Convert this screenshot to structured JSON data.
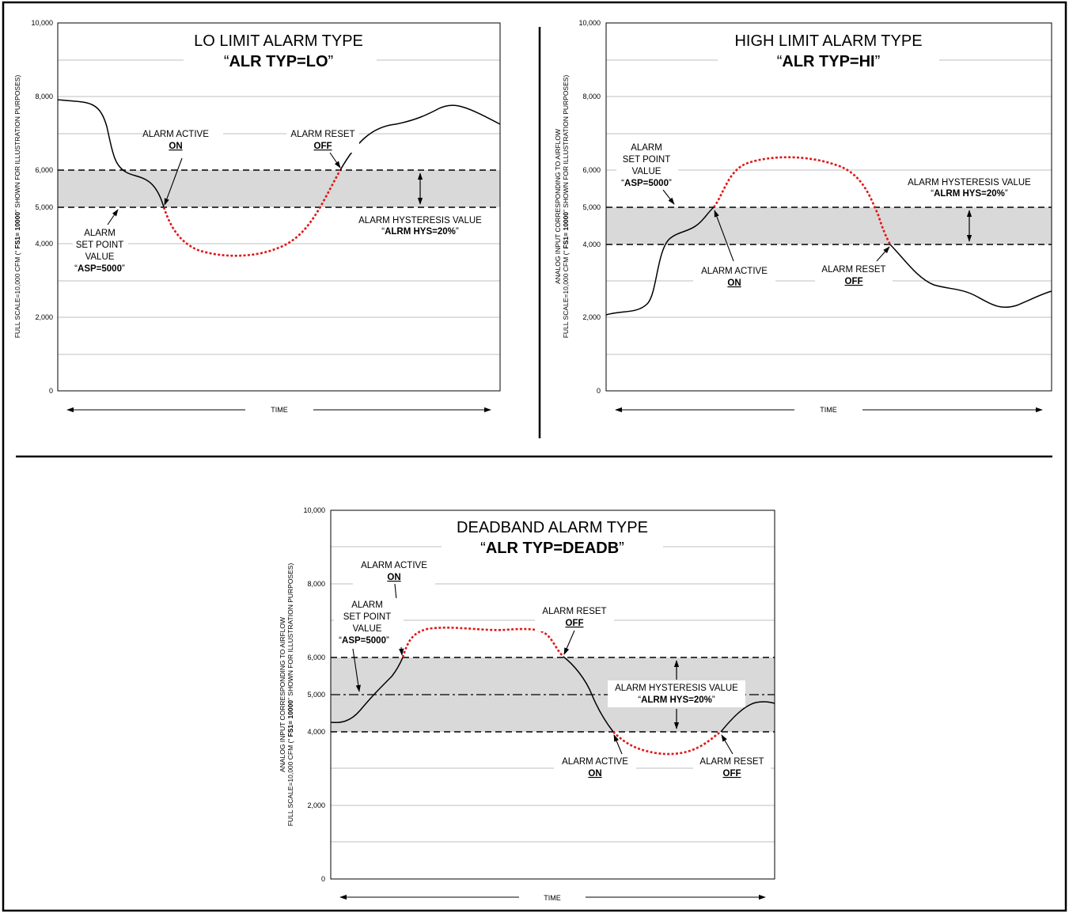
{
  "colors": {
    "band": "#d9d9d9",
    "curve": "#000000",
    "alarm": "#e01818",
    "grid": "#aaaaaa",
    "frame": "#000000"
  },
  "ticks": [
    "0",
    "2,000",
    "4,000",
    "5,000",
    "6,000",
    "8,000",
    "10,000"
  ],
  "time_label": "TIME",
  "yaxis_line1": "ANALOG INPUT CORRESPONDING TO AIRFLOW",
  "yaxis_line2_pre": "FULL SCALE=10,000 CFM (“ ",
  "yaxis_line2_bold": "FS1= 10000",
  "yaxis_line2_post": "” SHOWN FOR ILLUSTRATION PURPOSES)",
  "panels": {
    "lo": {
      "title": "LO LIMIT ALARM TYPE",
      "sub_q1": "“",
      "sub_bold": "ALR TYP=LO",
      "sub_q2": "”",
      "active_line1": "ALARM ACTIVE",
      "active_line2": "ON",
      "reset_line1": "ALARM RESET",
      "reset_line2": "OFF",
      "asp_line1": "ALARM",
      "asp_line2": "SET POINT",
      "asp_line3": "VALUE",
      "asp_q1": "“",
      "asp_bold": "ASP=5000",
      "asp_q2": "”",
      "hys_line1": "ALARM HYSTERESIS VALUE",
      "hys_q1": "“",
      "hys_bold": "ALRM HYS=20%",
      "hys_q2": "”"
    },
    "hi": {
      "title": "HIGH LIMIT ALARM TYPE",
      "sub_q1": "“",
      "sub_bold": "ALR TYP=HI",
      "sub_q2": "”",
      "active_line1": "ALARM ACTIVE",
      "active_line2": "ON",
      "reset_line1": "ALARM RESET",
      "reset_line2": "OFF",
      "asp_line1": "ALARM",
      "asp_line2": "SET POINT",
      "asp_line3": "VALUE",
      "asp_q1": "“",
      "asp_bold": "ASP=5000",
      "asp_q2": "”",
      "hys_line1": "ALARM HYSTERESIS VALUE",
      "hys_q1": "“",
      "hys_bold": "ALRM HYS=20%",
      "hys_q2": "”"
    },
    "db": {
      "title": "DEADBAND ALARM TYPE",
      "sub_q1": "“",
      "sub_bold": "ALR TYP=DEADB",
      "sub_q2": "”",
      "active1_line1": "ALARM ACTIVE",
      "active1_line2": "ON",
      "reset1_line1": "ALARM RESET",
      "reset1_line2": "OFF",
      "active2_line1": "ALARM ACTIVE",
      "active2_line2": "ON",
      "reset2_line1": "ALARM RESET",
      "reset2_line2": "OFF",
      "asp_line1": "ALARM",
      "asp_line2": "SET POINT",
      "asp_line3": "VALUE",
      "asp_q1": "“",
      "asp_bold": "ASP=5000",
      "asp_q2": "”",
      "hys_line1": "ALARM HYSTERESIS VALUE",
      "hys_q1": "“",
      "hys_bold": "ALRM HYS=20%",
      "hys_q2": "”"
    }
  },
  "chart_data": [
    {
      "type": "line",
      "title": "LO LIMIT ALARM TYPE",
      "subtitle": "“ALR TYP=LO”",
      "xlabel": "TIME",
      "ylabel": "FULL SCALE=10,000 CFM (“ FS1= 10000” SHOWN FOR ILLUSTRATION PURPOSES)",
      "ylim": [
        0,
        10000
      ],
      "yticks": [
        0,
        2000,
        4000,
        5000,
        6000,
        8000,
        10000
      ],
      "grid": true,
      "setpoint": 5000,
      "hysteresis_percent": 20,
      "band": [
        5000,
        6000
      ],
      "x": [
        0,
        4,
        8,
        11,
        14,
        16,
        18,
        21,
        24,
        28,
        32,
        36,
        40,
        44,
        48,
        52,
        56,
        60,
        64,
        68,
        72,
        76,
        80,
        84,
        88,
        92,
        96,
        100
      ],
      "y": [
        7950,
        7850,
        7700,
        6000,
        5750,
        5500,
        5000,
        4150,
        3800,
        3650,
        3600,
        3650,
        3800,
        4300,
        5300,
        6000,
        6600,
        7000,
        7200,
        7300,
        7400,
        7650,
        7750,
        7650,
        7500,
        7450,
        7350,
        7300
      ],
      "series": [
        {
          "name": "normal",
          "x_range": [
            0,
            18
          ]
        },
        {
          "name": "alarm active",
          "x_range": [
            18,
            52
          ]
        },
        {
          "name": "normal",
          "x_range": [
            52,
            100
          ]
        }
      ]
    },
    {
      "type": "line",
      "title": "HIGH LIMIT ALARM TYPE",
      "subtitle": "“ALR TYP=HI”",
      "xlabel": "TIME",
      "ylabel": "ANALOG INPUT CORRESPONDING TO AIRFLOW FULL SCALE=10,000 CFM (“ FS1= 10000” SHOWN FOR ILLUSTRATION PURPOSES)",
      "ylim": [
        0,
        10000
      ],
      "yticks": [
        0,
        2000,
        4000,
        5000,
        6000,
        8000,
        10000
      ],
      "grid": true,
      "setpoint": 5000,
      "hysteresis_percent": 20,
      "band": [
        4000,
        5000
      ],
      "x": [
        0,
        5,
        10,
        12,
        14,
        16,
        18,
        20,
        22,
        24,
        27,
        30,
        34,
        40,
        46,
        52,
        56,
        59,
        61,
        63,
        66,
        70,
        74,
        80,
        86,
        90,
        94,
        100
      ],
      "y": [
        2100,
        2150,
        2600,
        4000,
        4200,
        4400,
        5000,
        5700,
        6100,
        6250,
        6350,
        6350,
        6300,
        6200,
        6000,
        5400,
        4800,
        4000,
        3600,
        3200,
        2800,
        2650,
        2550,
        2300,
        2250,
        2300,
        2450,
        2700
      ],
      "series": [
        {
          "name": "normal",
          "x_range": [
            0,
            24
          ]
        },
        {
          "name": "alarm active",
          "x_range": [
            24,
            64
          ]
        },
        {
          "name": "normal",
          "x_range": [
            64,
            100
          ]
        }
      ]
    },
    {
      "type": "line",
      "title": "DEADBAND ALARM TYPE",
      "subtitle": "“ALR TYP=DEADB”",
      "xlabel": "TIME",
      "ylabel": "ANALOG INPUT CORRESPONDING TO AIRFLOW FULL SCALE=10,000 CFM (“ FS1= 10000” SHOWN FOR ILLUSTRATION PURPOSES)",
      "ylim": [
        0,
        10000
      ],
      "yticks": [
        0,
        2000,
        4000,
        5000,
        6000,
        8000,
        10000
      ],
      "grid": true,
      "setpoint": 5000,
      "hysteresis_percent": 20,
      "band": [
        4000,
        6000
      ],
      "x": [
        0,
        4,
        7,
        10,
        13,
        16,
        18,
        20,
        22,
        25,
        30,
        40,
        48,
        51,
        53,
        55,
        58,
        62,
        65,
        69,
        73,
        77,
        81,
        85,
        88,
        92,
        96,
        100
      ],
      "y": [
        4250,
        4300,
        4600,
        5000,
        5400,
        5800,
        6000,
        6500,
        6700,
        6800,
        6750,
        6750,
        6600,
        6300,
        6000,
        5700,
        5100,
        4500,
        4000,
        3600,
        3450,
        3350,
        3400,
        3700,
        4000,
        4500,
        4750,
        4700
      ],
      "series": [
        {
          "name": "normal",
          "x_range": [
            0,
            16
          ]
        },
        {
          "name": "alarm active",
          "x_range": [
            16,
            52
          ]
        },
        {
          "name": "normal",
          "x_range": [
            52,
            64
          ]
        },
        {
          "name": "alarm active",
          "x_range": [
            64,
            88
          ]
        },
        {
          "name": "normal",
          "x_range": [
            88,
            100
          ]
        }
      ]
    }
  ]
}
